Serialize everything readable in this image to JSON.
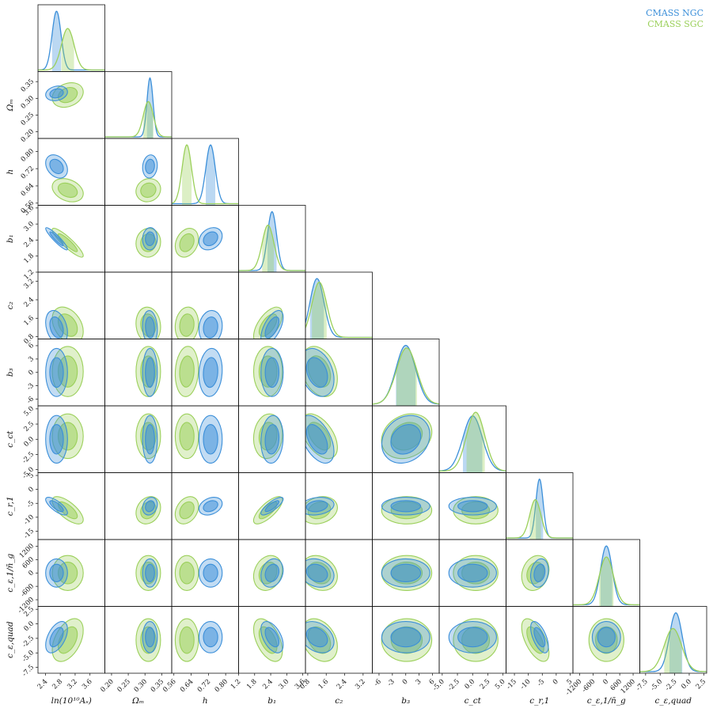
{
  "chart_data": {
    "type": "corner",
    "legend": {
      "position": "top-right",
      "entries": [
        {
          "label": "CMASS NGC",
          "color": "#3b8fd9"
        },
        {
          "label": "CMASS SGC",
          "color": "#9bd05a"
        }
      ]
    },
    "parameters": [
      {
        "name": "ln_As",
        "label": "ln(10¹⁰Aₛ)",
        "range": [
          2.2,
          4.0
        ],
        "ticks": [
          "2.4",
          "2.8",
          "3.2",
          "3.6"
        ],
        "tick_values": [
          2.4,
          2.8,
          3.2,
          3.6
        ],
        "ngc": {
          "mean": 2.7,
          "sd": 0.12
        },
        "sgc": {
          "mean": 3.0,
          "sd": 0.17
        }
      },
      {
        "name": "Omega_m",
        "label": "Ωₘ",
        "range": [
          0.18,
          0.38
        ],
        "ticks": [
          "0.20",
          "0.25",
          "0.30",
          "0.35"
        ],
        "tick_values": [
          0.2,
          0.25,
          0.3,
          0.35
        ],
        "ngc": {
          "mean": 0.315,
          "sd": 0.009
        },
        "sgc": {
          "mean": 0.31,
          "sd": 0.015
        }
      },
      {
        "name": "h",
        "label": "h",
        "range": [
          0.55,
          0.86
        ],
        "ticks": [
          "0.56",
          "0.64",
          "0.72",
          "0.80",
          "0.88"
        ],
        "tick_values": [
          0.56,
          0.64,
          0.72,
          0.8,
          0.88
        ],
        "ngc": {
          "mean": 0.73,
          "sd": 0.022
        },
        "sgc": {
          "mean": 0.62,
          "sd": 0.022
        }
      },
      {
        "name": "b1",
        "label": "b₁",
        "range": [
          1.2,
          3.7
        ],
        "ticks": [
          "1.2",
          "1.8",
          "2.4",
          "3.0",
          "3.6"
        ],
        "tick_values": [
          1.2,
          1.8,
          2.4,
          3.0,
          3.6
        ],
        "ngc": {
          "mean": 2.45,
          "sd": 0.17
        },
        "sgc": {
          "mean": 2.3,
          "sd": 0.22
        }
      },
      {
        "name": "c2",
        "label": "c₂",
        "range": [
          0.7,
          3.6
        ],
        "ticks": [
          "0.8",
          "1.6",
          "2.4",
          "3.2"
        ],
        "tick_values": [
          0.8,
          1.6,
          2.4,
          3.2
        ],
        "ngc": {
          "mean": 1.2,
          "sd": 0.3
        },
        "sgc": {
          "mean": 1.3,
          "sd": 0.32
        }
      },
      {
        "name": "b3",
        "label": "b₃",
        "range": [
          -7.5,
          7.5
        ],
        "ticks": [
          "-6",
          "-3",
          "0",
          "3",
          "6"
        ],
        "tick_values": [
          -6,
          -3,
          0,
          3,
          6
        ],
        "ngc": {
          "mean": 0.0,
          "sd": 2.2
        },
        "sgc": {
          "mean": 0.2,
          "sd": 2.3
        }
      },
      {
        "name": "c_ct",
        "label": "c_ct",
        "range": [
          -5.5,
          5.5
        ],
        "ticks": [
          "-5.0",
          "-2.5",
          "0.0",
          "2.5",
          "5.0"
        ],
        "tick_values": [
          -5,
          -2.5,
          0,
          2.5,
          5
        ],
        "ngc": {
          "mean": 0.0,
          "sd": 1.6
        },
        "sgc": {
          "mean": 0.5,
          "sd": 1.5
        }
      },
      {
        "name": "c_r1",
        "label": "c_r,1",
        "range": [
          -18,
          6
        ],
        "ticks": [
          "-15",
          "-10",
          "-5",
          "0",
          "5"
        ],
        "tick_values": [
          -15,
          -10,
          -5,
          0,
          5
        ],
        "ngc": {
          "mean": -6,
          "sd": 1.3
        },
        "sgc": {
          "mean": -7.5,
          "sd": 2.0
        }
      },
      {
        "name": "c_e1_ng",
        "label": "c_ε,1/n̄_g",
        "range": [
          -1500,
          1500
        ],
        "ticks": [
          "-1200",
          "-600",
          "0",
          "600",
          "1200"
        ],
        "tick_values": [
          -1200,
          -600,
          0,
          600,
          1200
        ],
        "ngc": {
          "mean": 0,
          "sd": 260
        },
        "sgc": {
          "mean": 0,
          "sd": 320
        }
      },
      {
        "name": "c_e_quad",
        "label": "c_ε,quad",
        "range": [
          -8.5,
          3
        ],
        "ticks": [
          "-7.5",
          "-5.0",
          "-2.5",
          "0.0",
          "2.5"
        ],
        "tick_values": [
          -7.5,
          -5,
          -2.5,
          0,
          2.5
        ],
        "ngc": {
          "mean": -2.3,
          "sd": 1.1
        },
        "sgc": {
          "mean": -2.8,
          "sd": 1.5
        }
      }
    ],
    "correlations_ngc": [
      [
        1
      ],
      [
        0.2,
        1
      ],
      [
        -0.3,
        0.1,
        1
      ],
      [
        -0.92,
        0.05,
        0.25,
        1
      ],
      [
        -0.3,
        -0.1,
        0.1,
        0.6,
        1
      ],
      [
        0.0,
        0.0,
        0.1,
        0.0,
        -0.3,
        1
      ],
      [
        0.0,
        0.0,
        0.0,
        0.1,
        -0.5,
        0.2,
        1
      ],
      [
        -0.75,
        0.2,
        0.3,
        0.8,
        0.2,
        0.0,
        0.0,
        1
      ],
      [
        0.0,
        0.0,
        0.0,
        0.2,
        -0.2,
        0.0,
        0.0,
        0.2,
        1
      ],
      [
        0.5,
        0.0,
        0.0,
        -0.5,
        -0.3,
        0.0,
        0.0,
        -0.6,
        0.0,
        1
      ]
    ],
    "correlations_sgc": [
      [
        1
      ],
      [
        0.25,
        1
      ],
      [
        -0.3,
        0.1,
        1
      ],
      [
        -0.9,
        0.05,
        0.25,
        1
      ],
      [
        -0.35,
        -0.1,
        0.1,
        0.6,
        1
      ],
      [
        0.0,
        0.0,
        0.1,
        0.0,
        -0.3,
        1
      ],
      [
        0.0,
        0.0,
        0.0,
        0.1,
        -0.5,
        0.2,
        1
      ],
      [
        -0.7,
        0.2,
        0.3,
        0.75,
        0.2,
        0.0,
        0.0,
        1
      ],
      [
        0.0,
        0.0,
        0.0,
        0.2,
        -0.2,
        0.0,
        0.0,
        0.2,
        1
      ],
      [
        0.45,
        0.0,
        0.0,
        -0.5,
        -0.3,
        0.0,
        0.0,
        -0.6,
        0.0,
        1
      ]
    ]
  }
}
